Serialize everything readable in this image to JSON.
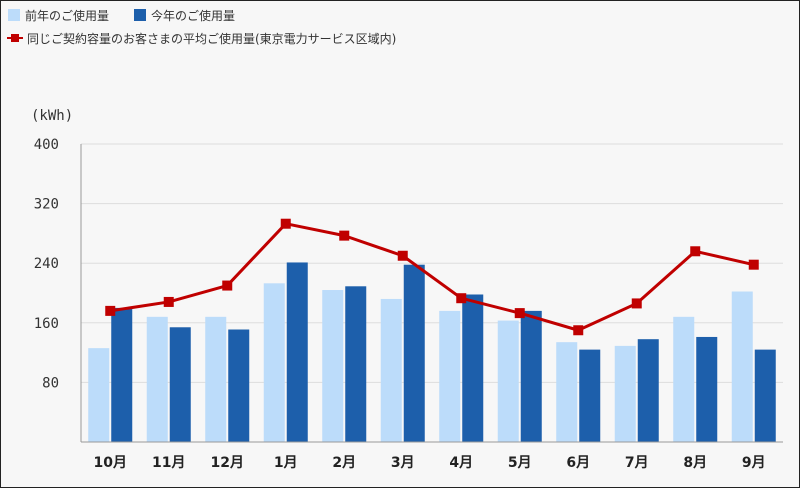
{
  "chart_data": {
    "type": "bar",
    "title": "",
    "ylabel": "(kWh)",
    "xlabel": "",
    "ylim": [
      0,
      400
    ],
    "yticks": [
      80,
      160,
      240,
      320,
      400
    ],
    "grid": true,
    "categories": [
      "10月",
      "11月",
      "12月",
      "1月",
      "2月",
      "3月",
      "4月",
      "5月",
      "6月",
      "7月",
      "8月",
      "9月"
    ],
    "series": [
      {
        "name": "前年のご使用量",
        "kind": "bar",
        "color": "#bcdcfa",
        "values": [
          126,
          168,
          168,
          213,
          204,
          192,
          176,
          163,
          134,
          129,
          168,
          202
        ]
      },
      {
        "name": "今年のご使用量",
        "kind": "bar",
        "color": "#1d5fab",
        "values": [
          180,
          154,
          151,
          241,
          209,
          238,
          198,
          176,
          124,
          138,
          141,
          124
        ]
      },
      {
        "name": "同じご契約容量のお客さまの平均ご使用量(東京電力サービス区域内)",
        "kind": "line",
        "color": "#c00000",
        "values": [
          176,
          188,
          210,
          293,
          277,
          250,
          193,
          173,
          150,
          186,
          256,
          238
        ]
      }
    ],
    "legend": {
      "placement": "top-left",
      "entries": [
        "前年のご使用量",
        "今年のご使用量",
        "同じご契約容量のお客さまの平均ご使用量(東京電力サービス区域内)"
      ]
    }
  }
}
